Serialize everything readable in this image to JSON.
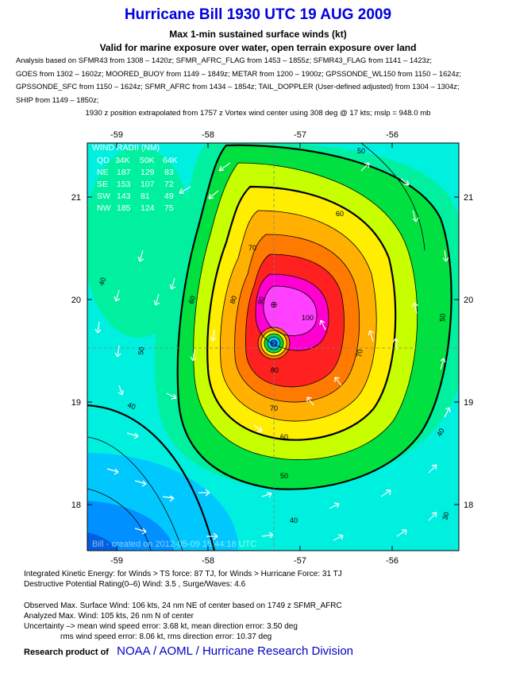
{
  "title": "Hurricane Bill 1930 UTC 19 AUG 2009",
  "subtitle_1": "Max 1-min sustained surface winds (kt)",
  "subtitle_2": "Valid for marine exposure over water, open terrain exposure over land",
  "analysis_lines": [
    "Analysis based on SFMR43 from 1308 – 1420z; SFMR_AFRC_FLAG from 1453 – 1855z; SFMR43_FLAG from 1141 – 1423z;",
    "GOES from 1302 – 1602z; MOORED_BUOY from 1149 – 1849z; METAR from 1200 – 1900z; GPSSONDE_WL150 from 1150 – 1624z;",
    "GPSSONDE_SFC from 1150 – 1624z; SFMR_AFRC from 1434 – 1854z; TAIL_DOPPLER (User-defined adjusted) from 1304 – 1304z;",
    "SHIP from 1149 – 1850z;"
  ],
  "extrapolation": "1930 z position extrapolated from 1757 z Vortex wind center using 308 deg @ 17 kts; mslp = 948.0 mb",
  "map": {
    "lon_ticks": [
      "-59",
      "-58",
      "-57",
      "-56"
    ],
    "lat_ticks": [
      "21",
      "20",
      "19",
      "18"
    ],
    "contour_labels": [
      "30",
      "40",
      "50",
      "60",
      "70",
      "80",
      "90",
      "100"
    ],
    "center_marker": "⊕",
    "wind_radii": {
      "title": "WIND RADII (NM)",
      "header": [
        "QD",
        "34K",
        "50K",
        "64K"
      ],
      "rows": [
        [
          "NE",
          "187",
          "129",
          "83"
        ],
        [
          "SE",
          "153",
          "107",
          "72"
        ],
        [
          "SW",
          "143",
          "81",
          "49"
        ],
        [
          "NW",
          "185",
          "124",
          "75"
        ]
      ]
    },
    "created_text": "Bill - created on 2012-05-09 15:44:18 UTC"
  },
  "stats": {
    "ike": "Integrated Kinetic Energy: for Winds > TS force: 87 TJ, for Winds > Hurricane Force: 31 TJ",
    "dp": "Destructive Potential Rating(0–6)   Wind: 3.5 , Surge/Waves: 4.6",
    "observed": "Observed Max. Surface Wind: 106 kts, 24 nm NE of center based on 1749 z SFMR_AFRC",
    "analyzed": "Analyzed Max. Wind: 105 kts, 26 nm  N of center",
    "uncertainty_1": "Uncertainty –> mean wind speed error: 3.68 kt, mean direction error: 3.50 deg",
    "uncertainty_2": "rms wind speed error: 8.06 kt, rms direction error: 10.37 deg"
  },
  "footer": {
    "prefix": "Research product of",
    "org": "NOAA / AOML / Hurricane Research Division"
  },
  "colors": {
    "c100": "#ff40ff",
    "c90": "#ff00d0",
    "c80": "#ff2020",
    "c70": "#ff7a00",
    "c65": "#ffb000",
    "c60": "#ffee00",
    "c55": "#c8ff00",
    "c50": "#00e040",
    "c45": "#00f0a0",
    "c40": "#00f0e0",
    "c35": "#00c8ff",
    "c30": "#0090ff",
    "c20": "#0060e0",
    "title_blue": "#0000e0",
    "link_blue": "#0000c8"
  }
}
